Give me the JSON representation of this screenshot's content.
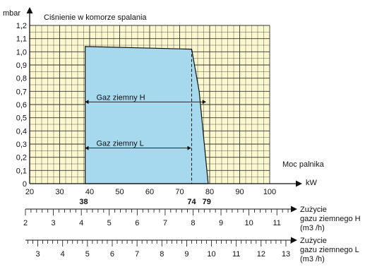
{
  "chart_data": {
    "type": "area",
    "title": "Ciśnienie w komorze spalania",
    "ylabel": "mbar",
    "xlabel": "Moc palnika",
    "x_unit": "kW",
    "xlim": [
      20,
      100
    ],
    "ylim": [
      0,
      1.2
    ],
    "x_ticks": [
      "20",
      "30",
      "40",
      "50",
      "60",
      "70",
      "80",
      "90",
      "100"
    ],
    "y_ticks": [
      "0",
      "0,1",
      "0,2",
      "0,3",
      "0,4",
      "0,5",
      "0,6",
      "0,7",
      "0,8",
      "0,9",
      "1,0",
      "1,1",
      "1,2"
    ],
    "grid": true,
    "series": [
      {
        "name": "",
        "x": [
          38.5,
          38.5,
          74,
          76.5,
          79.5
        ],
        "y": [
          0,
          1.04,
          1.02,
          0.7,
          0
        ]
      }
    ],
    "annotations": [
      {
        "text": "Gaz ziemny H",
        "x_from": 38,
        "x_to": 79,
        "y": 0.62
      },
      {
        "text": "Gaz ziemny L",
        "x_from": 38,
        "x_to": 74,
        "y": 0.27
      }
    ],
    "highlight_ticks": [
      "38",
      "74",
      "79"
    ],
    "secondary_axes": [
      {
        "label": [
          "Zużycie",
          "gazu ziemnego H",
          "(m3 /h)"
        ],
        "ticks": [
          "2",
          "3",
          "4",
          "5",
          "6",
          "7",
          "8",
          "9",
          "10",
          "11"
        ],
        "range": [
          2,
          11.5
        ]
      },
      {
        "label": [
          "Zużycie",
          "gazu ziemnego L",
          "(m3 /h)"
        ],
        "ticks": [
          "3",
          "4",
          "5",
          "6",
          "7",
          "8",
          "9",
          "10",
          "11",
          "12",
          "13"
        ],
        "range": [
          2.5,
          13.2
        ]
      }
    ],
    "colors": {
      "fill": "#a6d8ee",
      "grid_bg": "#fbf8cf",
      "line": "#111111"
    }
  }
}
